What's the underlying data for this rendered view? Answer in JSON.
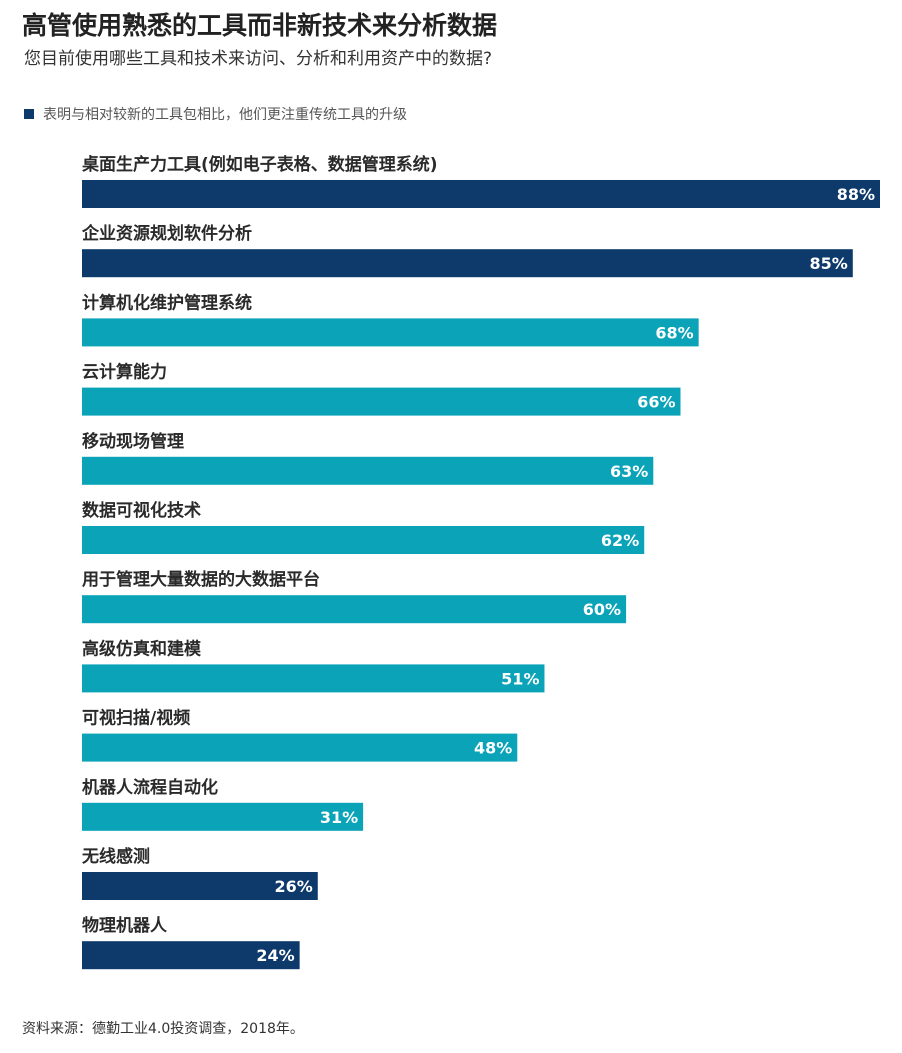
{
  "title": "高管使用熟悉的工具而非新技术来分析数据",
  "subtitle": "您目前使用哪些工具和技术来访问、分析和利用资产中的数据?",
  "legend": {
    "label": "表明与相对较新的工具包相比，他们更注重传统工具的升级",
    "color": "#0d3a6b"
  },
  "colors": {
    "highlight": "#0d3a6b",
    "default": "#0aa3b8"
  },
  "source": "资料来源：德勤工业4.0投资调查，2018年。",
  "chart_data": {
    "type": "bar",
    "orientation": "horizontal",
    "categories": [
      "桌面生产力工具(例如电子表格、数据管理系统)",
      "企业资源规划软件分析",
      "计算机化维护管理系统",
      "云计算能力",
      "移动现场管理",
      "数据可视化技术",
      "用于管理大量数据的大数据平台",
      "高级仿真和建模",
      "可视扫描/视频",
      "机器人流程自动化",
      "无线感测",
      "物理机器人"
    ],
    "values": [
      88,
      85,
      68,
      66,
      63,
      62,
      60,
      51,
      48,
      31,
      26,
      24
    ],
    "value_labels": [
      "88%",
      "85%",
      "68%",
      "66%",
      "63%",
      "62%",
      "60%",
      "51%",
      "48%",
      "31%",
      "26%",
      "24%"
    ],
    "highlighted": [
      true,
      true,
      false,
      false,
      false,
      false,
      false,
      false,
      false,
      false,
      true,
      true
    ],
    "xlim": [
      0,
      88
    ],
    "grid": false
  }
}
